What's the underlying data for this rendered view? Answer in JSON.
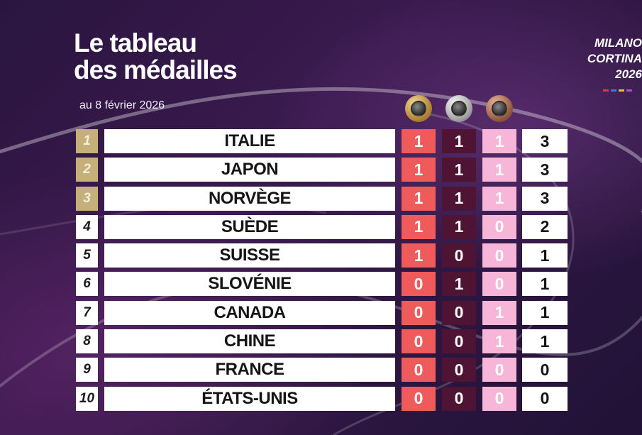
{
  "title_line1": "Le tableau",
  "title_line2": "des médailles",
  "subtitle": "au 8 février 2026",
  "brand": {
    "line1": "MILANO",
    "line2": "CORTINA",
    "line3": "2026"
  },
  "colors": {
    "gold_cell": "#ef5a5a",
    "silver_cell": "#4f1333",
    "bronze_cell": "#f7b6d8",
    "top_rank": "#c6b07a",
    "background": "#2b1640"
  },
  "medal_icons": [
    "gold-medal-icon",
    "silver-medal-icon",
    "bronze-medal-icon"
  ],
  "rows": [
    {
      "rank": "1",
      "country": "ITALIE",
      "gold": "1",
      "silver": "1",
      "bronze": "1",
      "total": "3"
    },
    {
      "rank": "2",
      "country": "JAPON",
      "gold": "1",
      "silver": "1",
      "bronze": "1",
      "total": "3"
    },
    {
      "rank": "3",
      "country": "NORVÈGE",
      "gold": "1",
      "silver": "1",
      "bronze": "1",
      "total": "3"
    },
    {
      "rank": "4",
      "country": "SUÈDE",
      "gold": "1",
      "silver": "1",
      "bronze": "0",
      "total": "2"
    },
    {
      "rank": "5",
      "country": "SUISSE",
      "gold": "1",
      "silver": "0",
      "bronze": "0",
      "total": "1"
    },
    {
      "rank": "6",
      "country": "SLOVÉNIE",
      "gold": "0",
      "silver": "1",
      "bronze": "0",
      "total": "1"
    },
    {
      "rank": "7",
      "country": "CANADA",
      "gold": "0",
      "silver": "0",
      "bronze": "1",
      "total": "1"
    },
    {
      "rank": "8",
      "country": "CHINE",
      "gold": "0",
      "silver": "0",
      "bronze": "1",
      "total": "1"
    },
    {
      "rank": "9",
      "country": "FRANCE",
      "gold": "0",
      "silver": "0",
      "bronze": "0",
      "total": "0"
    },
    {
      "rank": "10",
      "country": "ÉTATS-UNIS",
      "gold": "0",
      "silver": "0",
      "bronze": "0",
      "total": "0"
    }
  ]
}
